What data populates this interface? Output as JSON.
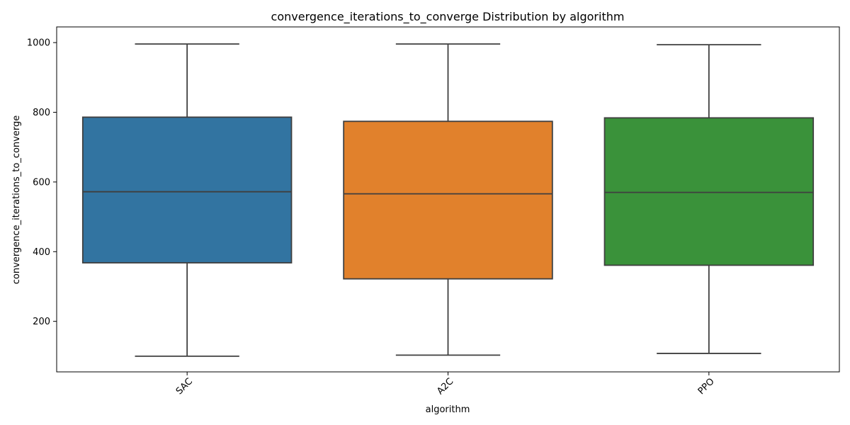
{
  "chart_data": {
    "type": "box",
    "title": "convergence_iterations_to_converge Distribution by algorithm",
    "xlabel": "algorithm",
    "ylabel": "convergence_iterations_to_converge",
    "ylim": [
      55,
      1045
    ],
    "yticks": [
      200,
      400,
      600,
      800,
      1000
    ],
    "grid": false,
    "legend": "none",
    "categories": [
      "SAC",
      "A2C",
      "PPO"
    ],
    "boxes": [
      {
        "category": "SAC",
        "min": 100,
        "q1": 368,
        "median": 572,
        "q3": 786,
        "max": 996,
        "color": "#3274a1"
      },
      {
        "category": "A2C",
        "min": 103,
        "q1": 322,
        "median": 566,
        "q3": 774,
        "max": 996,
        "color": "#e1812c"
      },
      {
        "category": "PPO",
        "min": 108,
        "q1": 361,
        "median": 570,
        "q3": 784,
        "max": 994,
        "color": "#3a923a"
      }
    ],
    "line_color": "#3f3f3f"
  }
}
